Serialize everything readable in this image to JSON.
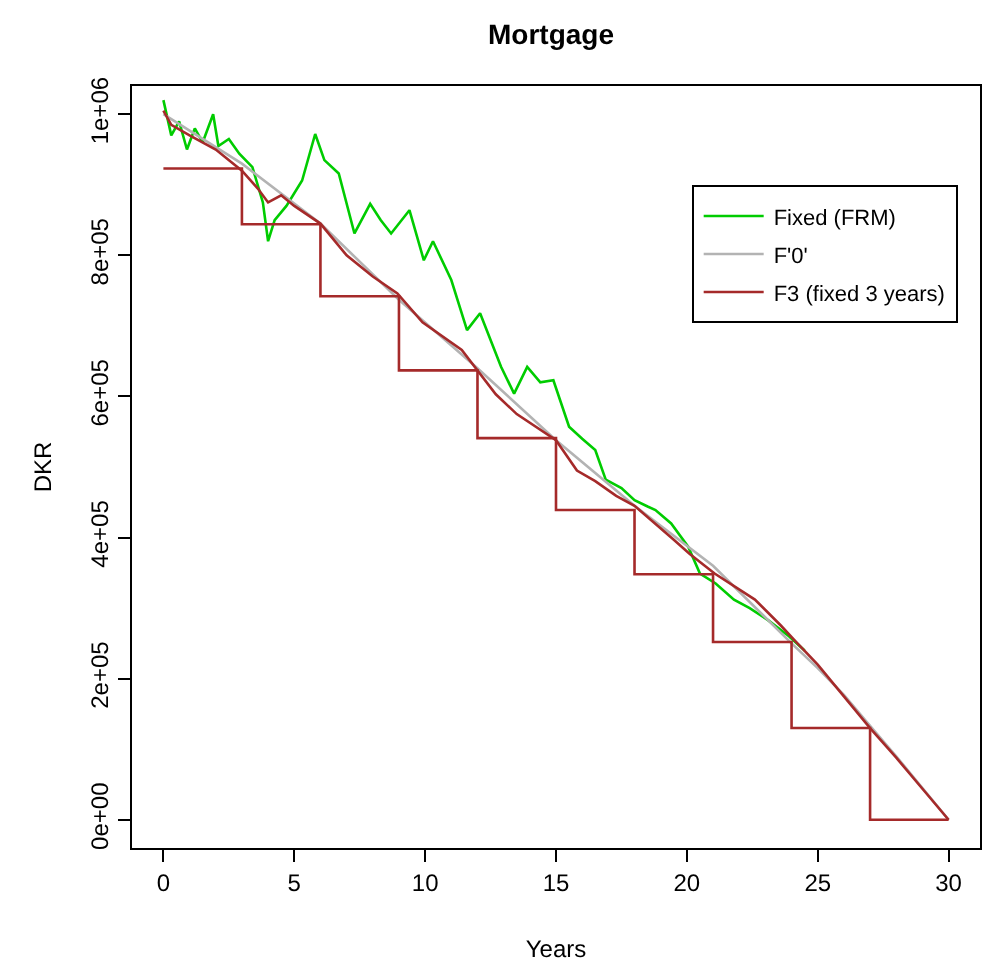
{
  "chart_data": {
    "type": "line",
    "title": "Mortgage",
    "xlabel": "Years",
    "ylabel": "DKR",
    "xlim": [
      -1.2,
      31.2
    ],
    "xticks": [
      0,
      5,
      10,
      15,
      20,
      25,
      30
    ],
    "ylim": [
      -40000,
      1040000
    ],
    "yticks": [
      {
        "value": 0,
        "label": "0e+00"
      },
      {
        "value": 200000,
        "label": "2e+05"
      },
      {
        "value": 400000,
        "label": "4e+05"
      },
      {
        "value": 600000,
        "label": "6e+05"
      },
      {
        "value": 800000,
        "label": "8e+05"
      },
      {
        "value": 1000000,
        "label": "1e+06"
      }
    ],
    "legend": "top right",
    "marker": "none",
    "line_style": "solid",
    "series": [
      {
        "name": "Fixed (FRM)",
        "color": "#00cc00",
        "x": [
          0,
          0.3,
          0.6,
          0.9,
          1.2,
          1.5,
          1.9,
          2.1,
          2.5,
          2.9,
          3.4,
          3.8,
          4.0,
          4.25,
          4.7,
          5.3,
          5.8,
          6.15,
          6.7,
          7.3,
          7.9,
          8.3,
          8.7,
          9.4,
          9.95,
          10.3,
          11.0,
          11.6,
          12.1,
          12.9,
          13.4,
          13.9,
          14.4,
          14.9,
          15.5,
          16.0,
          16.5,
          16.9,
          17.5,
          18.0,
          18.5,
          18.8,
          19.4,
          20.05,
          20.5,
          21.1,
          21.8,
          22.4,
          23.1,
          23.9,
          24.5
        ],
        "values": [
          1020000,
          970000,
          990000,
          950000,
          980000,
          960000,
          1000000,
          955000,
          965000,
          944000,
          925000,
          875000,
          820000,
          850000,
          870000,
          906000,
          972000,
          935000,
          916000,
          831000,
          873000,
          850000,
          831000,
          864000,
          793000,
          820000,
          765000,
          694000,
          718000,
          642000,
          604000,
          642000,
          620000,
          623000,
          557000,
          540000,
          524000,
          482000,
          470000,
          453000,
          444000,
          439000,
          420000,
          387000,
          349000,
          335000,
          312000,
          300000,
          283000,
          260000,
          240000
        ]
      },
      {
        "name": "F'0'",
        "color": "#b3b3b3",
        "x": [
          0,
          3,
          6,
          9,
          12,
          15,
          18,
          21,
          24,
          25,
          26,
          27,
          28,
          29,
          30
        ],
        "values": [
          1000000,
          930000,
          845000,
          737000,
          640000,
          538000,
          445000,
          360000,
          250000,
          215000,
          177000,
          133000,
          90000,
          45000,
          0
        ]
      },
      {
        "name": "F3 (fixed 3 years)",
        "color": "#a52a2a",
        "x": [
          0,
          0.3,
          1,
          2,
          3,
          3.6,
          4.0,
          4.5,
          5,
          6,
          7,
          8,
          8.94,
          9.9,
          11.4,
          12.7,
          13.5,
          15,
          15.8,
          16.5,
          17.3,
          18,
          19.5,
          20.1,
          21.06,
          22.6,
          23.6,
          24.1,
          25,
          26,
          27,
          28,
          29,
          30
        ],
        "values": [
          1005000,
          985000,
          970000,
          950000,
          920000,
          895000,
          875000,
          885000,
          870000,
          845000,
          800000,
          770000,
          746000,
          705000,
          666000,
          603000,
          575000,
          538000,
          495000,
          480000,
          459000,
          445000,
          397000,
          377000,
          349000,
          312000,
          275000,
          255000,
          220000,
          175000,
          130000,
          88000,
          44000,
          0
        ]
      },
      {
        "type": "step",
        "color": "#a52a2a",
        "x": [
          0,
          3,
          6,
          9,
          12,
          15,
          18,
          21,
          24,
          27,
          30
        ],
        "values": [
          923000,
          844000,
          742000,
          637000,
          541000,
          439000,
          348000,
          252000,
          130000,
          0,
          0
        ]
      }
    ]
  }
}
